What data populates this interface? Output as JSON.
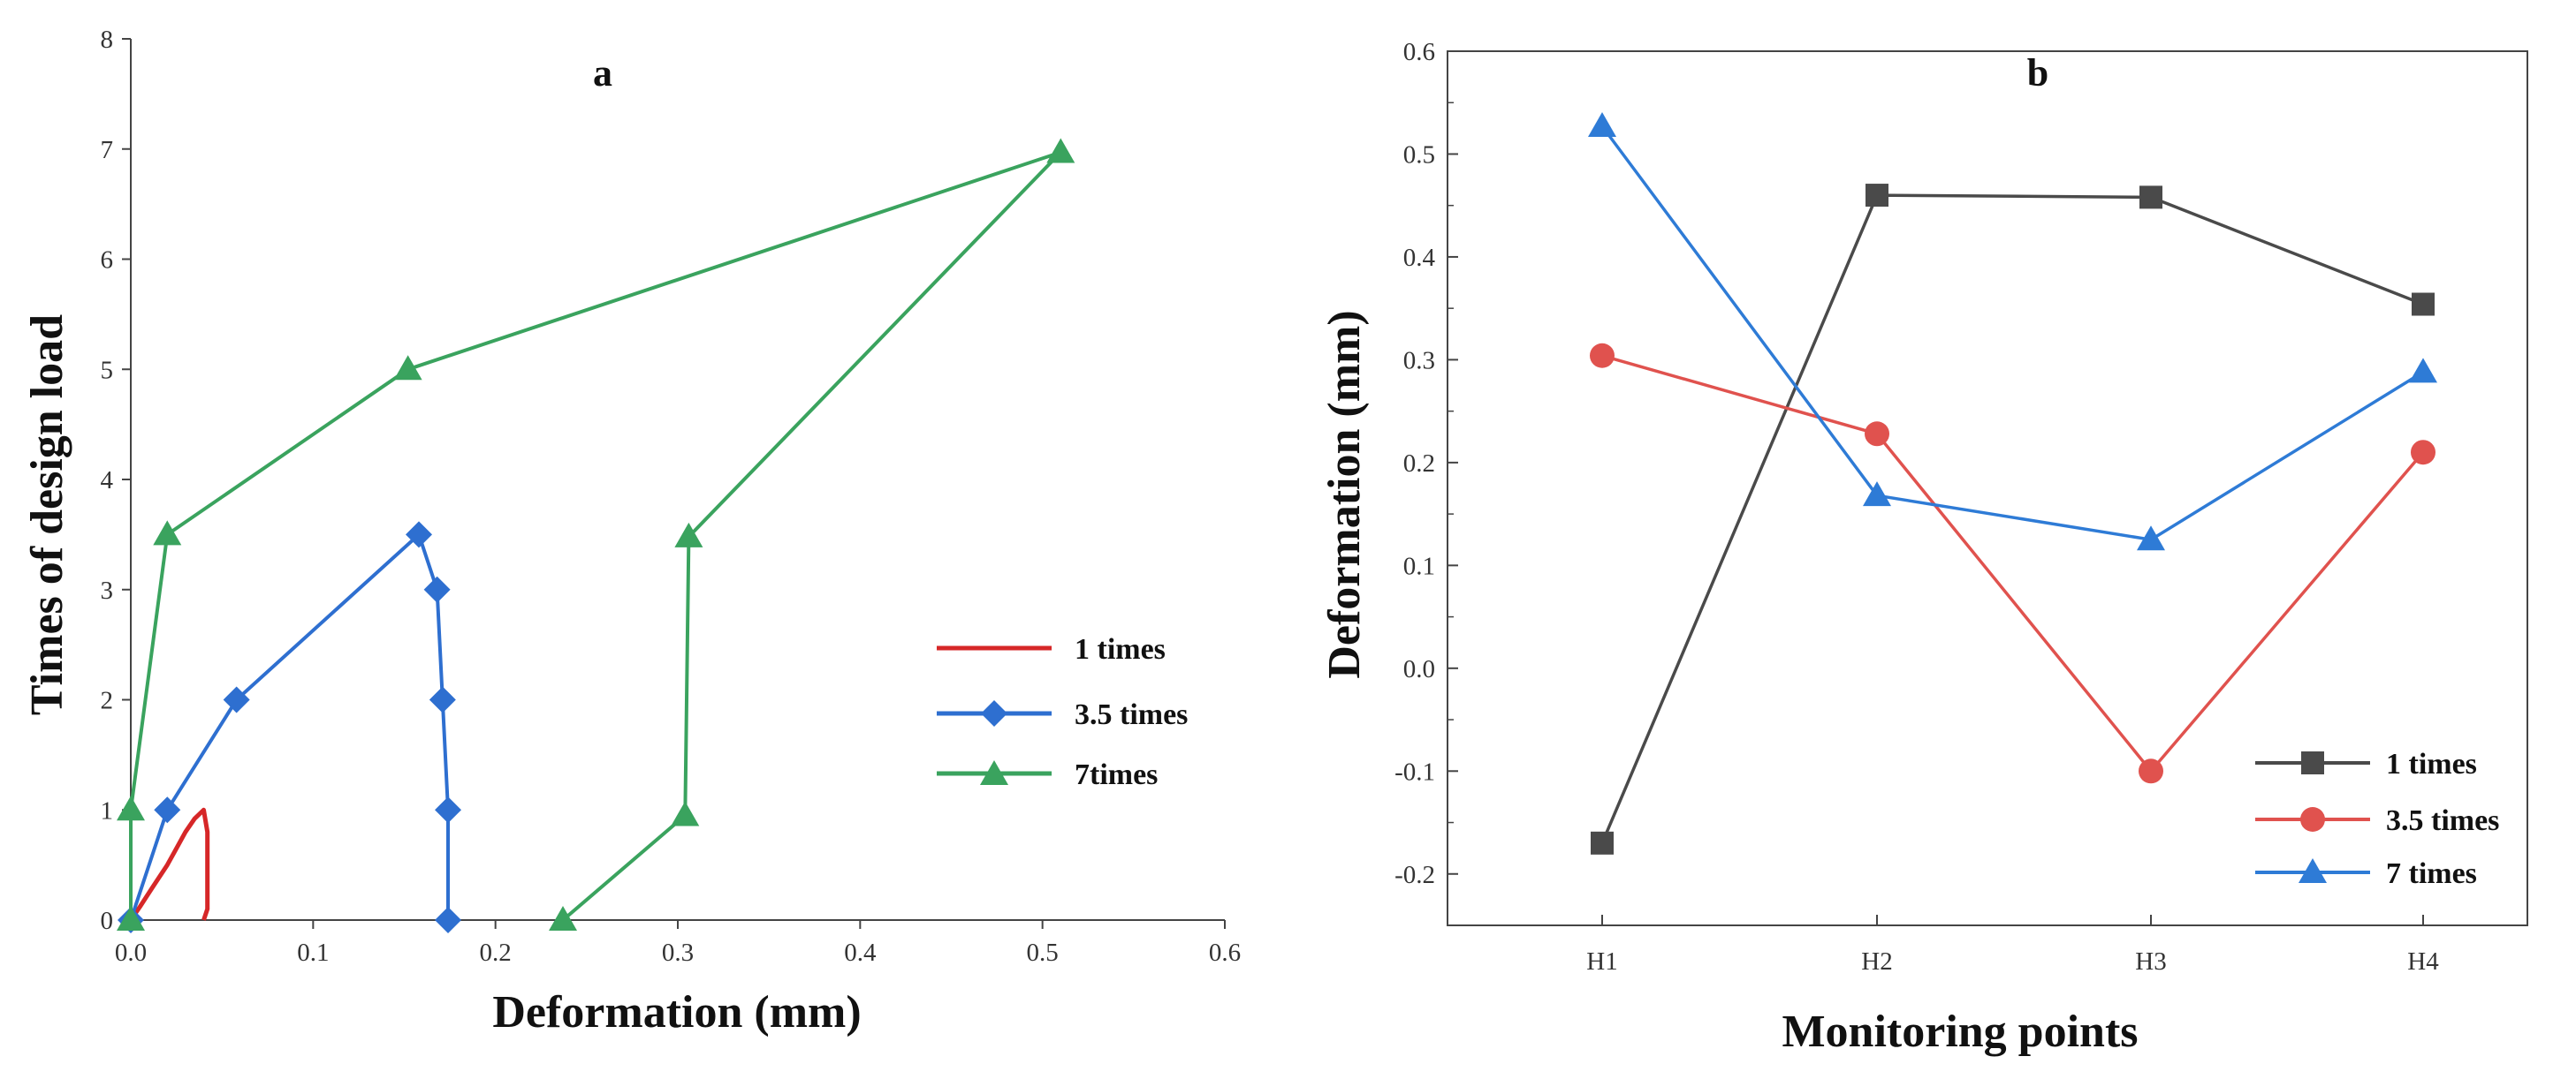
{
  "chart_data": [
    {
      "type": "line",
      "title": "a",
      "xlabel": "Deformation (mm)",
      "ylabel": "Times of design load",
      "xlim": [
        0,
        0.6
      ],
      "ylim": [
        0,
        8
      ],
      "xticks": [
        "0.0",
        "0.1",
        "0.2",
        "0.3",
        "0.4",
        "0.5",
        "0.6"
      ],
      "yticks": [
        "0",
        "1",
        "2",
        "3",
        "4",
        "5",
        "6",
        "7",
        "8"
      ],
      "legend_position": "center-right",
      "series": [
        {
          "name": "1 times",
          "color": "#d62728",
          "marker": "none",
          "points": [
            [
              0.0,
              0.0
            ],
            [
              0.005,
              0.12
            ],
            [
              0.012,
              0.3
            ],
            [
              0.02,
              0.5
            ],
            [
              0.025,
              0.65
            ],
            [
              0.03,
              0.8
            ],
            [
              0.035,
              0.92
            ],
            [
              0.04,
              1.0
            ],
            [
              0.042,
              0.8
            ],
            [
              0.042,
              0.4
            ],
            [
              0.042,
              0.1
            ],
            [
              0.04,
              0.0
            ]
          ]
        },
        {
          "name": "3.5 times",
          "color": "#2e6fd0",
          "marker": "diamond",
          "points": [
            [
              0.0,
              0.0
            ],
            [
              0.02,
              1.0
            ],
            [
              0.058,
              2.0
            ],
            [
              0.158,
              3.5
            ],
            [
              0.168,
              3.0
            ],
            [
              0.171,
              2.0
            ],
            [
              0.174,
              1.0
            ],
            [
              0.174,
              0.0
            ]
          ]
        },
        {
          "name": "7times",
          "color": "#3aa35e",
          "marker": "triangle",
          "points": [
            [
              0.0,
              0.0
            ],
            [
              0.0,
              1.0
            ],
            [
              0.02,
              3.5
            ],
            [
              0.152,
              5.0
            ],
            [
              0.51,
              6.97
            ],
            [
              0.306,
              3.48
            ],
            [
              0.304,
              0.95
            ],
            [
              0.237,
              0.0
            ]
          ]
        }
      ]
    },
    {
      "type": "line",
      "title": "b",
      "xlabel": "Monitoring points",
      "ylabel": "Deformation (mm)",
      "categories": [
        "H1",
        "H2",
        "H3",
        "H4"
      ],
      "ylim": [
        -0.25,
        0.6
      ],
      "yticks": [
        "-0.2",
        "-0.1",
        "0.0",
        "0.1",
        "0.2",
        "0.3",
        "0.4",
        "0.5",
        "0.6"
      ],
      "legend_position": "bottom-right",
      "series": [
        {
          "name": "1 times",
          "color": "#4a4a4a",
          "marker": "square",
          "values": [
            -0.17,
            0.46,
            0.458,
            0.354
          ]
        },
        {
          "name": "3.5 times",
          "color": "#e0524e",
          "marker": "circle",
          "values": [
            0.304,
            0.228,
            -0.1,
            0.21
          ]
        },
        {
          "name": "7 times",
          "color": "#2e7bd6",
          "marker": "triangle",
          "values": [
            0.527,
            0.168,
            0.125,
            0.288
          ]
        }
      ]
    }
  ]
}
